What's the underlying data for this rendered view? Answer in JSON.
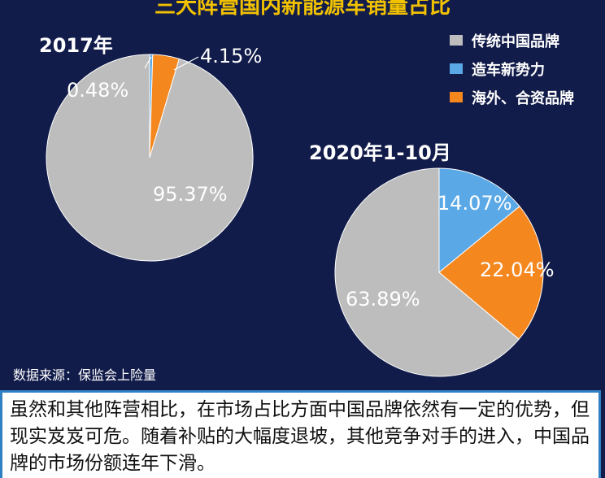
{
  "header": {
    "title": "三大阵营国内新能源车销量占比"
  },
  "legend": {
    "items": [
      {
        "label": "传统中国品牌",
        "color": "#bdbdbd"
      },
      {
        "label": "造车新势力",
        "color": "#5aa9e6"
      },
      {
        "label": "海外、合资品牌",
        "color": "#f5871f"
      }
    ]
  },
  "chart_data": [
    {
      "type": "pie",
      "title": "2017年",
      "slices": [
        {
          "category": "造车新势力",
          "value": 0.48,
          "label": "0.48%",
          "color": "#5aa9e6"
        },
        {
          "category": "海外、合资品牌",
          "value": 4.15,
          "label": "4.15%",
          "color": "#f5871f"
        },
        {
          "category": "传统中国品牌",
          "value": 95.37,
          "label": "95.37%",
          "color": "#bdbdbd"
        }
      ]
    },
    {
      "type": "pie",
      "title": "2020年1-10月",
      "slices": [
        {
          "category": "造车新势力",
          "value": 14.07,
          "label": "14.07%",
          "color": "#5aa9e6"
        },
        {
          "category": "海外、合资品牌",
          "value": 22.04,
          "label": "22.04%",
          "color": "#f5871f"
        },
        {
          "category": "传统中国品牌",
          "value": 63.89,
          "label": "63.89%",
          "color": "#bdbdbd"
        }
      ]
    }
  ],
  "source": "数据来源：保监会上险量",
  "commentary": "虽然和其他阵营相比，在市场占比方面中国品牌依然有一定的优势，但现实岌岌可危。随着补贴的大幅度退坡，其他竞争对手的进入，中国品牌的市场份额连年下滑。"
}
